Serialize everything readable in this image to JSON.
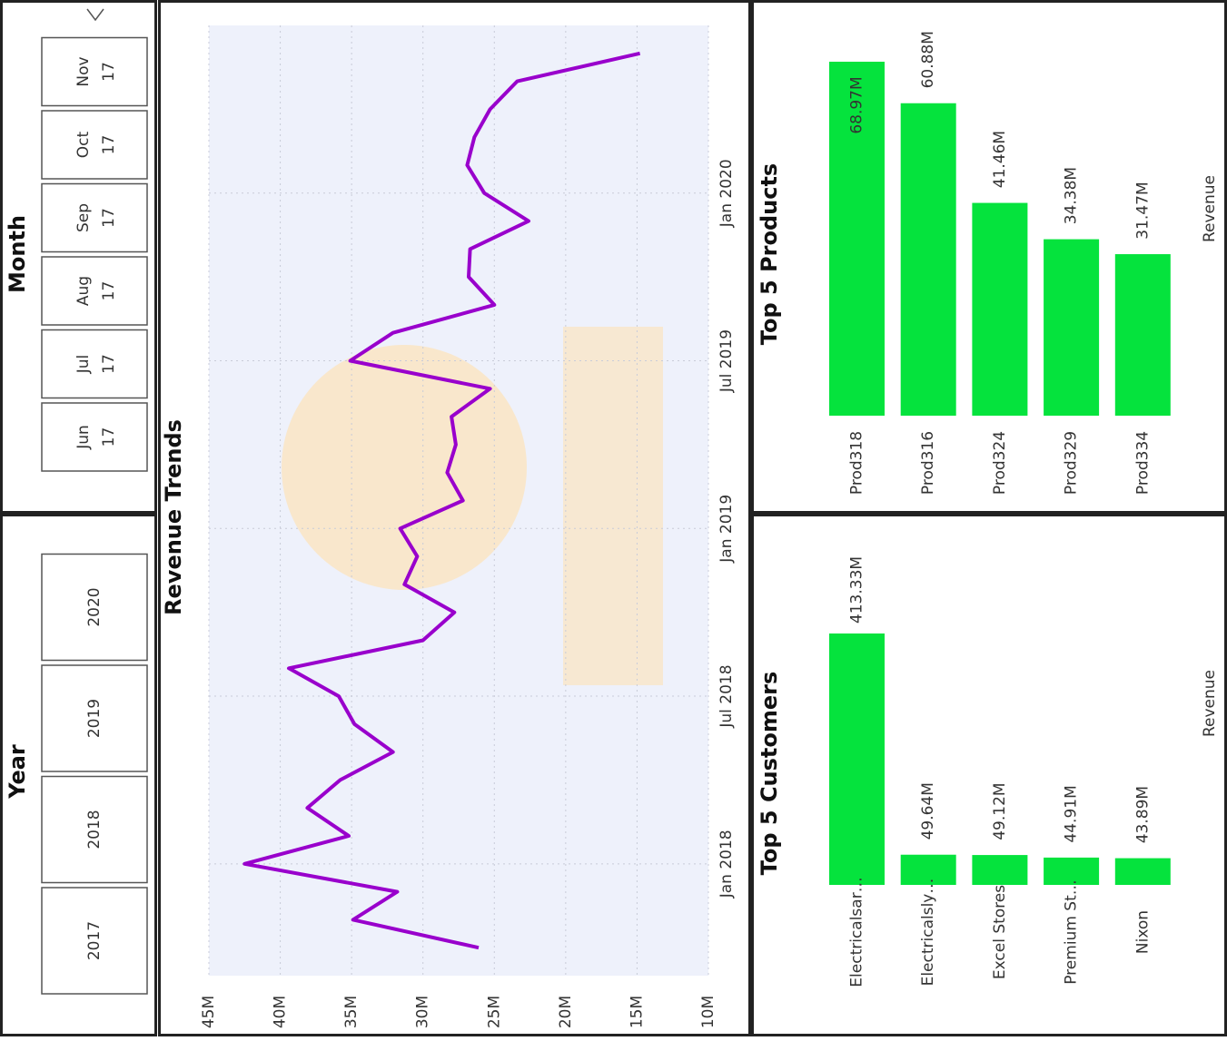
{
  "slicers": {
    "month": {
      "title": "Month",
      "items": [
        {
          "month": "Jun",
          "year": "17"
        },
        {
          "month": "Jul",
          "year": "17"
        },
        {
          "month": "Aug",
          "year": "17"
        },
        {
          "month": "Sep",
          "year": "17"
        },
        {
          "month": "Oct",
          "year": "17"
        },
        {
          "month": "Nov",
          "year": "17"
        }
      ]
    },
    "year": {
      "title": "Year",
      "items": [
        "2017",
        "2018",
        "2019",
        "2020"
      ]
    }
  },
  "chart_data": [
    {
      "type": "line",
      "title": "Revenue Trends",
      "color": "#9900cc",
      "grid": true,
      "x": [
        "2017-10",
        "2017-11",
        "2017-12",
        "2018-01",
        "2018-02",
        "2018-03",
        "2018-04",
        "2018-05",
        "2018-06",
        "2018-07",
        "2018-08",
        "2018-09",
        "2018-10",
        "2018-11",
        "2018-12",
        "2019-01",
        "2019-02",
        "2019-03",
        "2019-04",
        "2019-05",
        "2019-06",
        "2019-07",
        "2019-08",
        "2019-09",
        "2019-10",
        "2019-11",
        "2019-12",
        "2020-01",
        "2020-02",
        "2020-03",
        "2020-04",
        "2020-05",
        "2020-06"
      ],
      "values": [
        26.1,
        34.9,
        31.8,
        42.5,
        35.2,
        38.1,
        35.8,
        32.1,
        34.8,
        35.9,
        39.4,
        30.0,
        27.8,
        31.3,
        30.4,
        31.6,
        27.2,
        28.3,
        27.7,
        28.0,
        25.3,
        35.1,
        32.1,
        25.0,
        26.8,
        26.7,
        22.6,
        25.7,
        26.9,
        26.4,
        25.3,
        23.4,
        14.8
      ],
      "xlim": [
        "2017-09",
        "2020-07"
      ],
      "xticks": [
        {
          "value": "2018-01",
          "label": "Jan 2018"
        },
        {
          "value": "2018-07",
          "label": "Jul 2018"
        },
        {
          "value": "2019-01",
          "label": "Jan 2019"
        },
        {
          "value": "2019-07",
          "label": "Jul 2019"
        },
        {
          "value": "2020-01",
          "label": "Jan 2020"
        }
      ],
      "ylim": [
        10,
        45
      ],
      "yticks": [
        {
          "value": 10,
          "label": "10M"
        },
        {
          "value": 15,
          "label": "15M"
        },
        {
          "value": 20,
          "label": "20M"
        },
        {
          "value": 25,
          "label": "25M"
        },
        {
          "value": 30,
          "label": "30M"
        },
        {
          "value": 35,
          "label": "35M"
        },
        {
          "value": 40,
          "label": "40M"
        },
        {
          "value": 45,
          "label": "45M"
        }
      ]
    },
    {
      "type": "bar",
      "title": "Top 5 Products",
      "ylabel": "Revenue",
      "color": "#05e33d",
      "categories": [
        "Prod318",
        "Prod316",
        "Prod324",
        "Prod329",
        "Prod334"
      ],
      "values": [
        68.97,
        60.88,
        41.46,
        34.38,
        31.47
      ],
      "value_labels": [
        "68.97M",
        "60.88M",
        "41.46M",
        "34.38M",
        "31.47M"
      ]
    },
    {
      "type": "bar",
      "title": "Top 5 Customers",
      "ylabel": "Revenue",
      "color": "#05e33d",
      "categories": [
        "Electricalsar…",
        "Electricalsly…",
        "Excel Stores",
        "Premium St…",
        "Nixon"
      ],
      "values": [
        413.33,
        49.64,
        49.12,
        44.91,
        43.89
      ],
      "value_labels": [
        "413.33M",
        "49.64M",
        "49.12M",
        "44.91M",
        "43.89M"
      ]
    }
  ]
}
